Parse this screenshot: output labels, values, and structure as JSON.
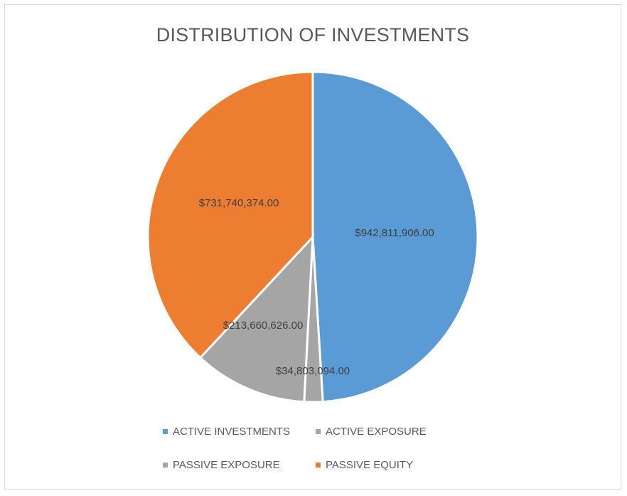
{
  "chart_data": {
    "type": "pie",
    "title": "DISTRIBUTION OF INVESTMENTS",
    "categories": [
      "ACTIVE INVESTMENTS",
      "ACTIVE EXPOSURE",
      "PASSIVE EXPOSURE",
      "PASSIVE EQUITY"
    ],
    "values": [
      942811906,
      34803094,
      213660626,
      731740374
    ],
    "data_labels": [
      "$942,811,906.00",
      "$34,803,094.00",
      "$213,660,626.00",
      "$731,740,374.00"
    ],
    "colors": [
      "#5b9bd5",
      "#a5a5a5",
      "#a5a5a5",
      "#ed7d31"
    ],
    "legend_position": "bottom"
  }
}
